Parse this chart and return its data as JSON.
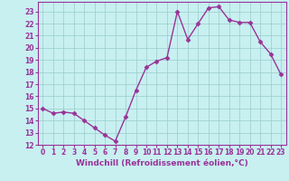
{
  "x": [
    0,
    1,
    2,
    3,
    4,
    5,
    6,
    7,
    8,
    9,
    10,
    11,
    12,
    13,
    14,
    15,
    16,
    17,
    18,
    19,
    20,
    21,
    22,
    23
  ],
  "y": [
    15.0,
    14.6,
    14.7,
    14.6,
    14.0,
    13.4,
    12.8,
    12.3,
    14.3,
    16.5,
    18.4,
    18.9,
    19.2,
    23.0,
    20.7,
    22.0,
    23.3,
    23.4,
    22.3,
    22.1,
    22.1,
    20.5,
    19.5,
    17.8
  ],
  "line_color": "#993399",
  "marker": "D",
  "marker_size": 2.5,
  "bg_color": "#c8f0f0",
  "grid_color": "#99cccc",
  "xlabel": "Windchill (Refroidissement éolien,°C)",
  "xlim": [
    -0.5,
    23.5
  ],
  "ylim": [
    12,
    23.8
  ],
  "yticks": [
    12,
    13,
    14,
    15,
    16,
    17,
    18,
    19,
    20,
    21,
    22,
    23
  ],
  "xticks": [
    0,
    1,
    2,
    3,
    4,
    5,
    6,
    7,
    8,
    9,
    10,
    11,
    12,
    13,
    14,
    15,
    16,
    17,
    18,
    19,
    20,
    21,
    22,
    23
  ],
  "tick_label_fontsize": 5.5,
  "xlabel_fontsize": 6.5,
  "line_width": 1.0
}
